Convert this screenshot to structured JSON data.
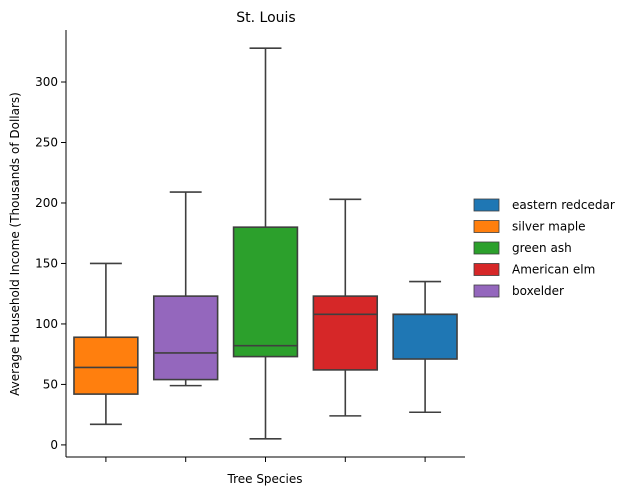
{
  "chart_data": {
    "type": "box",
    "title": "St. Louis",
    "xlabel": "Tree Species",
    "ylabel": "Average Household Income (Thousands of Dollars)",
    "ylim": [
      -10,
      343
    ],
    "yticks": [
      0,
      50,
      100,
      150,
      200,
      250,
      300
    ],
    "xtick_labels_visible": false,
    "grid": false,
    "legend_position": "right",
    "legend": [
      {
        "name": "eastern redcedar",
        "color": "#1f77b4"
      },
      {
        "name": "silver maple",
        "color": "#ff7f0e"
      },
      {
        "name": "green ash",
        "color": "#2ca02c"
      },
      {
        "name": "American elm",
        "color": "#d62728"
      },
      {
        "name": "boxelder",
        "color": "#9467bd"
      }
    ],
    "boxes": [
      {
        "name": "silver maple",
        "color": "#ff7f0e",
        "whisker_low": 17,
        "q1": 42,
        "median": 64,
        "q3": 89,
        "whisker_high": 150
      },
      {
        "name": "boxelder",
        "color": "#9467bd",
        "whisker_low": 49,
        "q1": 54,
        "median": 76,
        "q3": 123,
        "whisker_high": 209
      },
      {
        "name": "green ash",
        "color": "#2ca02c",
        "whisker_low": 5,
        "q1": 73,
        "median": 82,
        "q3": 180,
        "whisker_high": 328
      },
      {
        "name": "American elm",
        "color": "#d62728",
        "whisker_low": 24,
        "q1": 62,
        "median": 108,
        "q3": 123,
        "whisker_high": 203
      },
      {
        "name": "eastern redcedar",
        "color": "#1f77b4",
        "whisker_low": 27,
        "q1": 71,
        "median": 108,
        "q3": 108,
        "whisker_high": 135
      }
    ]
  }
}
